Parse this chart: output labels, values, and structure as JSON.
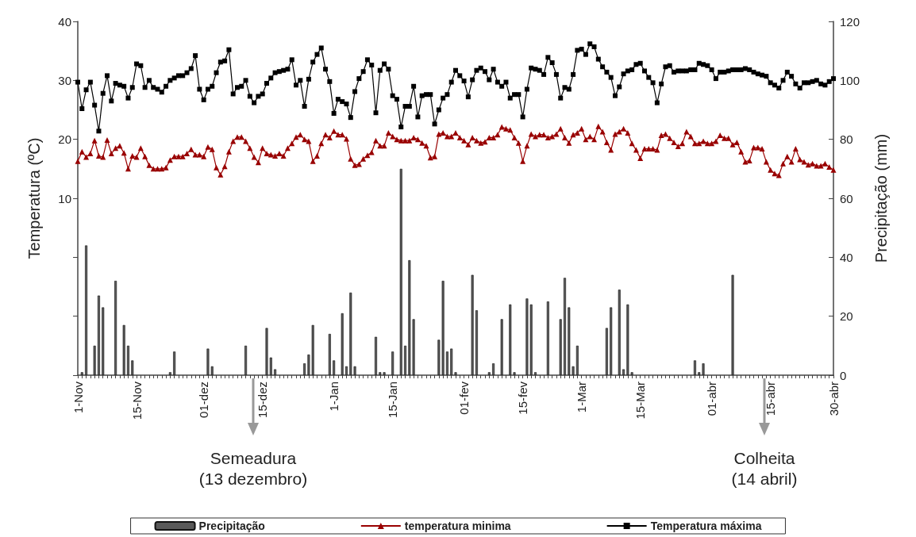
{
  "chart_data": {
    "type": "line",
    "ylabel": "Temperatura (ºC)",
    "y2label": "Precipitação (mm)",
    "legend": "bottom",
    "ylim": [
      -20,
      40
    ],
    "yticks": [
      {
        "value": -20,
        "label": null
      },
      {
        "value": -10,
        "label": null
      },
      {
        "value": 0,
        "label": null
      },
      10,
      20,
      30,
      40
    ],
    "y2lim": [
      0,
      120
    ],
    "y2ticks": [
      0,
      20,
      40,
      60,
      80,
      100,
      120
    ],
    "categories": [
      "1-Nov",
      null,
      null,
      null,
      null,
      null,
      null,
      null,
      null,
      null,
      null,
      null,
      null,
      null,
      "15-Nov",
      null,
      null,
      null,
      null,
      null,
      null,
      null,
      null,
      null,
      null,
      null,
      null,
      null,
      null,
      null,
      "01-dez",
      null,
      null,
      null,
      null,
      null,
      null,
      null,
      null,
      null,
      null,
      null,
      null,
      null,
      "15-dez",
      null,
      null,
      null,
      null,
      null,
      null,
      null,
      null,
      null,
      null,
      null,
      null,
      null,
      null,
      null,
      null,
      "1-Jan",
      null,
      null,
      null,
      null,
      null,
      null,
      null,
      null,
      null,
      null,
      null,
      null,
      null,
      "15-Jan",
      null,
      null,
      null,
      null,
      null,
      null,
      null,
      null,
      null,
      null,
      null,
      null,
      null,
      null,
      null,
      null,
      "01-fev",
      null,
      null,
      null,
      null,
      null,
      null,
      null,
      null,
      null,
      null,
      null,
      null,
      null,
      "15-fev",
      null,
      null,
      null,
      null,
      null,
      null,
      null,
      null,
      null,
      null,
      null,
      null,
      null,
      "1-Mar",
      null,
      null,
      null,
      null,
      null,
      null,
      null,
      null,
      null,
      null,
      null,
      null,
      null,
      "15-Mar",
      null,
      null,
      null,
      null,
      null,
      null,
      null,
      null,
      null,
      null,
      null,
      null,
      null,
      null,
      null,
      null,
      "01-abr",
      null,
      null,
      null,
      null,
      null,
      null,
      null,
      null,
      null,
      null,
      null,
      null,
      null,
      "15-abr",
      null,
      null,
      null,
      null,
      null,
      null,
      null,
      null,
      null,
      null,
      null,
      null,
      null,
      null,
      "30-abr"
    ],
    "series": [
      {
        "name": "Precipitação",
        "type": "bar",
        "axis": "y2",
        "color": "#595959",
        "values": [
          null,
          1,
          44,
          null,
          10,
          27,
          23,
          null,
          null,
          32,
          null,
          17,
          10,
          5,
          null,
          null,
          null,
          null,
          null,
          null,
          null,
          null,
          1,
          8,
          null,
          null,
          null,
          null,
          null,
          null,
          null,
          9,
          3,
          null,
          null,
          null,
          null,
          null,
          null,
          null,
          10,
          null,
          null,
          null,
          null,
          16,
          6,
          2,
          null,
          null,
          null,
          null,
          null,
          null,
          4,
          7,
          17,
          null,
          null,
          null,
          14,
          5,
          null,
          21,
          3,
          28,
          3,
          null,
          null,
          null,
          null,
          13,
          1,
          1,
          null,
          8,
          null,
          70,
          10,
          39,
          19,
          null,
          null,
          null,
          null,
          null,
          12,
          32,
          8,
          9,
          1,
          null,
          null,
          null,
          34,
          22,
          null,
          null,
          1,
          4,
          null,
          19,
          null,
          24,
          1,
          null,
          null,
          26,
          24,
          1,
          null,
          null,
          25,
          null,
          null,
          19,
          33,
          23,
          3,
          10,
          null,
          null,
          null,
          null,
          null,
          null,
          16,
          23,
          null,
          29,
          2,
          24,
          1,
          null,
          null,
          null,
          null,
          null,
          null,
          null,
          null,
          null,
          null,
          null,
          null,
          null,
          null,
          5,
          1,
          4,
          null,
          null,
          null,
          null,
          null,
          null,
          34,
          null,
          null,
          null,
          null,
          null,
          null,
          null,
          null,
          null,
          null,
          null,
          null,
          null,
          null,
          null,
          null,
          null,
          null,
          null,
          null,
          null,
          null,
          null,
          null
        ]
      },
      {
        "name": "temperatura minima",
        "color": "#990000",
        "marker": "triangle",
        "values": [
          16.3,
          17.9,
          17.0,
          17.6,
          19.8,
          17.2,
          17.0,
          19.9,
          17.6,
          18.5,
          18.9,
          17.7,
          15.0,
          17.2,
          17.0,
          18.5,
          17.1,
          15.6,
          15.0,
          15.0,
          15.0,
          15.2,
          16.5,
          17.1,
          17.1,
          17.1,
          17.6,
          18.3,
          17.4,
          17.4,
          17.1,
          18.7,
          18.3,
          15.2,
          14.0,
          15.4,
          17.9,
          19.7,
          20.4,
          20.4,
          19.7,
          18.5,
          17.0,
          16.1,
          18.5,
          17.6,
          17.4,
          17.2,
          17.6,
          17.2,
          18.5,
          19.3,
          20.4,
          20.8,
          20.0,
          19.7,
          16.3,
          17.2,
          19.3,
          20.8,
          20.3,
          21.4,
          20.8,
          20.8,
          20.1,
          16.7,
          15.6,
          15.8,
          16.7,
          17.3,
          17.8,
          19.8,
          18.9,
          18.9,
          21.1,
          20.5,
          20.0,
          19.8,
          19.8,
          19.8,
          20.3,
          20.0,
          19.4,
          18.9,
          16.9,
          17.1,
          20.9,
          21.1,
          20.5,
          20.5,
          21.1,
          20.3,
          19.8,
          19.1,
          20.3,
          19.8,
          19.4,
          19.6,
          20.3,
          20.3,
          20.8,
          22.1,
          21.8,
          21.6,
          20.3,
          19.4,
          16.3,
          18.9,
          20.9,
          20.5,
          20.8,
          20.8,
          20.3,
          20.5,
          20.9,
          21.8,
          20.3,
          19.4,
          20.8,
          21.1,
          21.8,
          20.0,
          20.5,
          20.0,
          22.2,
          21.3,
          19.5,
          18.2,
          20.9,
          21.3,
          21.8,
          21.1,
          19.3,
          18.2,
          16.8,
          18.4,
          18.4,
          18.4,
          18.2,
          20.7,
          20.9,
          20.2,
          19.5,
          18.8,
          19.3,
          21.3,
          20.5,
          19.3,
          19.3,
          19.7,
          19.3,
          19.3,
          19.7,
          20.7,
          20.2,
          20.2,
          19.1,
          19.5,
          17.9,
          16.2,
          16.4,
          18.6,
          18.6,
          18.4,
          16.2,
          14.8,
          14.2,
          13.9,
          15.9,
          17.1,
          16.2,
          18.4,
          16.6,
          16.2,
          15.7,
          15.9,
          15.5,
          15.5,
          15.9,
          15.3,
          14.8
        ]
      },
      {
        "name": "Temperatura máxima",
        "color": "#000000",
        "marker": "square",
        "values": [
          29.7,
          25.2,
          28.4,
          29.7,
          25.8,
          21.4,
          27.8,
          30.8,
          26.5,
          29.5,
          29.2,
          29.0,
          27.0,
          28.8,
          32.8,
          32.5,
          28.8,
          30.0,
          28.8,
          28.5,
          28.0,
          29.0,
          30.0,
          30.4,
          30.8,
          30.8,
          31.3,
          32.0,
          34.2,
          28.5,
          26.7,
          28.5,
          29.0,
          31.3,
          33.1,
          33.3,
          35.2,
          27.7,
          28.8,
          29.0,
          30.0,
          27.3,
          26.2,
          27.3,
          27.7,
          29.5,
          30.4,
          31.3,
          31.5,
          31.7,
          31.9,
          33.5,
          29.2,
          30.0,
          25.6,
          30.2,
          33.1,
          34.4,
          35.5,
          31.9,
          29.8,
          24.4,
          26.8,
          26.4,
          26.0,
          23.7,
          28.1,
          30.3,
          31.5,
          33.5,
          32.6,
          24.5,
          31.7,
          32.8,
          31.9,
          27.4,
          26.8,
          22.1,
          25.6,
          25.6,
          29.0,
          23.8,
          27.4,
          27.6,
          27.6,
          22.6,
          25.0,
          27.0,
          27.6,
          29.7,
          31.7,
          30.8,
          29.9,
          27.2,
          30.1,
          31.7,
          32.1,
          31.5,
          30.1,
          31.9,
          29.7,
          29.0,
          29.7,
          27.0,
          27.6,
          27.6,
          23.8,
          28.5,
          32.1,
          31.9,
          31.7,
          31.0,
          33.9,
          33.0,
          31.0,
          27.0,
          28.8,
          28.5,
          31.0,
          35.1,
          35.3,
          34.4,
          36.2,
          35.7,
          33.6,
          32.3,
          31.4,
          30.5,
          27.4,
          28.9,
          31.1,
          31.6,
          31.8,
          32.7,
          32.9,
          31.6,
          30.5,
          29.6,
          26.2,
          29.4,
          32.3,
          32.5,
          31.4,
          31.6,
          31.6,
          31.6,
          31.8,
          31.8,
          32.9,
          32.7,
          32.5,
          31.8,
          30.3,
          31.4,
          31.4,
          31.6,
          31.8,
          31.8,
          31.8,
          32.0,
          31.8,
          31.4,
          31.1,
          30.9,
          30.7,
          29.6,
          29.2,
          28.7,
          30.0,
          31.4,
          30.7,
          29.4,
          28.7,
          29.6,
          29.6,
          29.8,
          30.0,
          29.4,
          29.2,
          29.8,
          30.3
        ]
      }
    ],
    "annotations": [
      "Semeadura\n(13 dezembro)",
      "Colheita\n(14 abril)"
    ]
  }
}
